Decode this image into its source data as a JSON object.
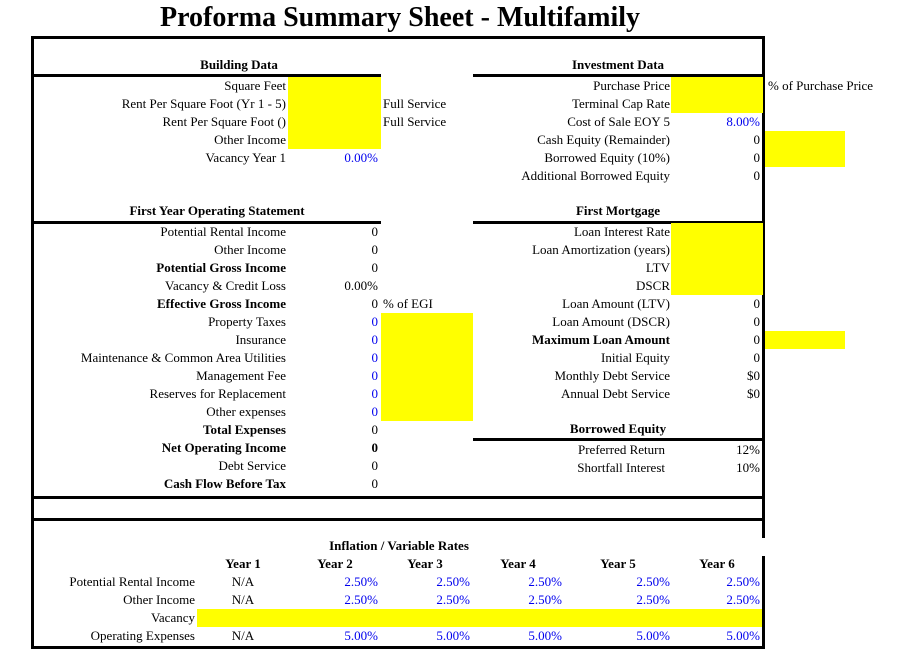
{
  "title": "Proforma Summary Sheet  - Multifamily",
  "building": {
    "heading": "Building Data",
    "rows": [
      {
        "label": "Square Feet",
        "highlight": true
      },
      {
        "label": "Rent Per Square Foot (Yr 1 - 5)",
        "highlight": true,
        "note": "Full Service"
      },
      {
        "label": "Rent Per Square Foot ()",
        "highlight": true,
        "note": "Full Service"
      },
      {
        "label": "Other Income",
        "highlight": true
      },
      {
        "label": "Vacancy Year 1",
        "value": "0.00%",
        "color": "#0000ee"
      }
    ]
  },
  "investment": {
    "heading": "Investment Data",
    "rows": [
      {
        "label": "Purchase Price",
        "highlight": true,
        "note": "% of Purchase Price"
      },
      {
        "label": "Terminal Cap Rate",
        "highlight": true
      },
      {
        "label": "Cost of Sale EOY 5",
        "value": "8.00%",
        "color": "#0000ee"
      },
      {
        "label": "Cash Equity (Remainder)",
        "value": "0",
        "side_highlight": true
      },
      {
        "label": "Borrowed Equity (10%)",
        "value": "0",
        "side_highlight": true
      },
      {
        "label": "Additional Borrowed Equity",
        "value": "0"
      }
    ]
  },
  "operating": {
    "heading": "First Year Operating Statement",
    "rows": [
      {
        "label": "Potential Rental Income",
        "value": "0"
      },
      {
        "label": "Other Income",
        "value": "0"
      },
      {
        "label": "Potential Gross Income",
        "value": "0",
        "bold": true
      },
      {
        "label": "Vacancy & Credit Loss",
        "value": "0.00%"
      },
      {
        "label": "Effective Gross Income",
        "value": "0",
        "bold": true,
        "note": "% of EGI"
      },
      {
        "label": "Property Taxes",
        "value": "0",
        "color": "#0000ee",
        "side_highlight": true
      },
      {
        "label": "Insurance",
        "value": "0",
        "color": "#0000ee",
        "side_highlight": true
      },
      {
        "label": "Maintenance & Common Area Utilities",
        "value": "0",
        "color": "#0000ee",
        "side_highlight": true
      },
      {
        "label": "Management Fee",
        "value": "0",
        "color": "#0000ee",
        "side_highlight": true
      },
      {
        "label": "Reserves for Replacement",
        "value": "0",
        "color": "#0000ee",
        "side_highlight": true
      },
      {
        "label": "Other expenses",
        "value": "0",
        "color": "#0000ee",
        "side_highlight": true
      },
      {
        "label": "Total Expenses",
        "value": "0",
        "bold": true
      },
      {
        "label": "Net Operating Income",
        "value": "0",
        "bold": true,
        "bold_value": true
      },
      {
        "label": "Debt Service",
        "value": "0"
      },
      {
        "label": "Cash Flow Before Tax",
        "value": "0",
        "bold": true
      }
    ]
  },
  "mortgage": {
    "heading": "First Mortgage",
    "rows": [
      {
        "label": "Loan Interest Rate",
        "highlight": true
      },
      {
        "label": "Loan Amortization (years)",
        "highlight": true
      },
      {
        "label": "LTV",
        "highlight": true
      },
      {
        "label": "DSCR",
        "highlight": true
      },
      {
        "label": "Loan Amount (LTV)",
        "value": "0"
      },
      {
        "label": "Loan Amount (DSCR)",
        "value": "0"
      },
      {
        "label": "Maximum Loan Amount",
        "value": "0",
        "bold": true,
        "side_highlight": true
      },
      {
        "label": "Initial Equity",
        "value": "0"
      },
      {
        "label": "Monthly Debt Service",
        "value": "$0"
      },
      {
        "label": "Annual Debt Service",
        "value": "$0"
      }
    ]
  },
  "borrowed_equity": {
    "heading": "Borrowed Equity",
    "rows": [
      {
        "label": "Preferred Return",
        "value": "12%"
      },
      {
        "label": "Shortfall Interest",
        "value": "10%"
      }
    ]
  },
  "inflation": {
    "heading": "Inflation / Variable Rates",
    "years": [
      "Year 1",
      "Year 2",
      "Year 3",
      "Year 4",
      "Year 5",
      "Year 6"
    ],
    "rows": [
      {
        "label": "Potential Rental Income",
        "values": [
          "N/A",
          "2.50%",
          "2.50%",
          "2.50%",
          "2.50%",
          "2.50%"
        ]
      },
      {
        "label": "Other Income",
        "values": [
          "N/A",
          "2.50%",
          "2.50%",
          "2.50%",
          "2.50%",
          "2.50%"
        ]
      },
      {
        "label": "Vacancy",
        "highlight": true
      },
      {
        "label": "Operating Expenses",
        "values": [
          "N/A",
          "5.00%",
          "5.00%",
          "5.00%",
          "5.00%",
          "5.00%"
        ]
      }
    ]
  }
}
